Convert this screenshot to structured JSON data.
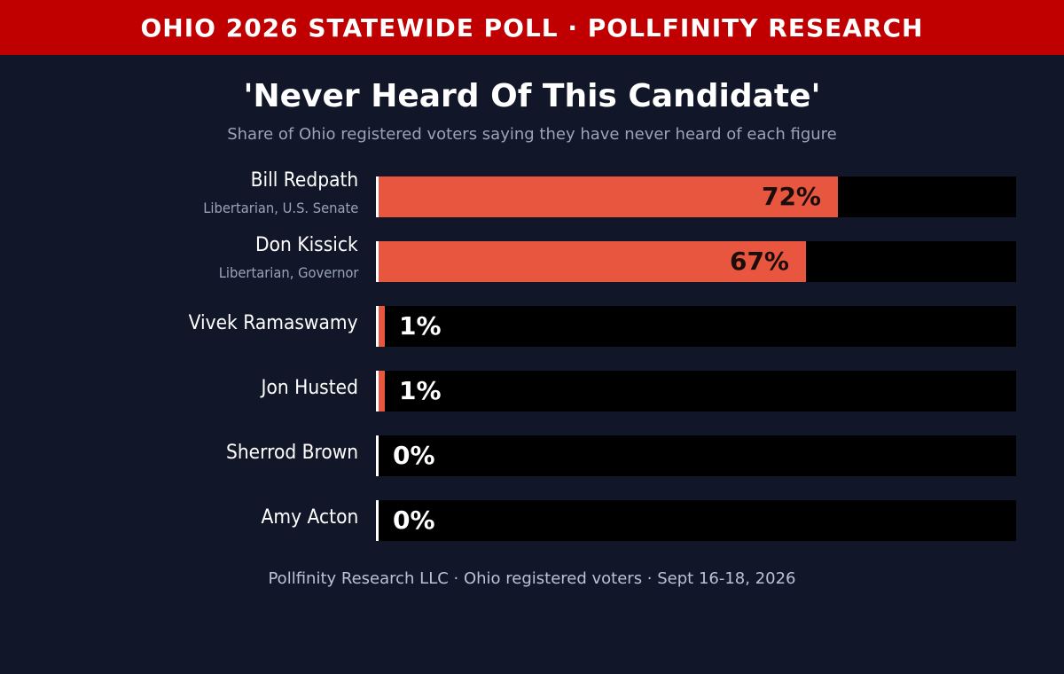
{
  "banner": "OHIO 2026 STATEWIDE POLL · POLLFINITY RESEARCH",
  "footer": "Pollfinity Research LLC · Ohio registered voters · Sept 16-18, 2026",
  "colors": {
    "banner": "#c00000",
    "background": "#111729",
    "bar": "#e85640",
    "track": "#000000"
  },
  "chart_data": {
    "type": "bar",
    "orientation": "horizontal",
    "title": "'Never Heard Of This Candidate'",
    "subtitle": "Share of Ohio registered voters saying they have never heard of each figure",
    "unit": "%",
    "xlim": [
      0,
      100
    ],
    "categories": [
      {
        "name": "Bill Redpath",
        "subtitle": "Libertarian, U.S. Senate"
      },
      {
        "name": "Don Kissick",
        "subtitle": "Libertarian, Governor"
      },
      {
        "name": "Vivek Ramaswamy",
        "subtitle": ""
      },
      {
        "name": "Jon Husted",
        "subtitle": ""
      },
      {
        "name": "Sherrod Brown",
        "subtitle": ""
      },
      {
        "name": "Amy Acton",
        "subtitle": ""
      }
    ],
    "values": [
      72,
      67,
      1,
      1,
      0,
      0
    ],
    "value_labels": [
      "72%",
      "67%",
      "1%",
      "1%",
      "0%",
      "0%"
    ]
  }
}
